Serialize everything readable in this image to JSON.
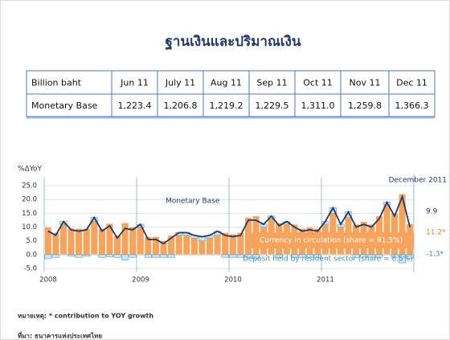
{
  "header": {
    "title": "ฐานเงินและปริมาณเงิน"
  },
  "table": {
    "rows": [
      [
        "Billion baht",
        "Jun 11",
        "July 11",
        "Aug 11",
        "Sep 11",
        "Oct 11",
        "Nov 11",
        "Dec 11"
      ],
      [
        "Monetary Base",
        "1,223.4",
        "1,206.8",
        "1,219.2",
        "1,229.5",
        "1,311.0",
        "1,259.8",
        "1,366.3"
      ]
    ]
  },
  "chart_data": {
    "type": "bar_line",
    "y_label": "%ΔYoY",
    "categories": [
      "2008",
      null,
      null,
      null,
      null,
      null,
      null,
      null,
      null,
      null,
      null,
      null,
      "2009",
      null,
      null,
      null,
      null,
      null,
      null,
      null,
      null,
      null,
      null,
      null,
      "2010",
      null,
      null,
      null,
      null,
      null,
      null,
      null,
      null,
      null,
      null,
      null,
      "2011",
      null,
      null,
      null,
      null,
      null,
      null,
      null,
      null,
      null,
      null,
      null
    ],
    "series": [
      {
        "name": "Currency in circulation (share = 91.5%)",
        "color": "#f7a35c",
        "values": [
          10,
          8,
          11,
          9.5,
          9.5,
          9.5,
          12,
          9.5,
          11.3,
          7,
          11.5,
          10,
          10,
          6.5,
          6.5,
          5,
          7,
          7,
          7,
          6,
          5,
          6,
          7,
          8,
          7.5,
          8,
          13.5,
          14,
          10,
          13,
          11.5,
          11,
          11,
          9.5,
          10,
          9.5,
          11,
          15,
          10,
          13.5,
          11,
          12,
          11,
          14,
          18,
          15,
          22,
          11.2
        ]
      },
      {
        "name": "Deposit held by resident sector (share = 8.5%)",
        "color": "#c6e6f4",
        "values": [
          -1.5,
          -1,
          1,
          -0.5,
          -1,
          -0.5,
          1.5,
          -1,
          -0.8,
          -1,
          -2,
          -1,
          1,
          -1,
          -1,
          -1,
          -1,
          1,
          1,
          1,
          1.5,
          1,
          1.5,
          -1,
          -1,
          -1,
          -1,
          -1.5,
          1,
          1,
          -1,
          1,
          -1,
          -1,
          -1,
          -1,
          1,
          2,
          1,
          2,
          -1,
          -1,
          -1,
          -1,
          1,
          -1,
          -3,
          -1.3
        ]
      },
      {
        "name": "Monetary Base",
        "color": "#1f3a6e",
        "values": [
          8.5,
          7,
          12,
          9,
          8.5,
          9,
          13.5,
          8.5,
          10.5,
          6,
          9.5,
          9,
          11,
          5.5,
          5.5,
          4,
          6,
          8,
          8,
          7,
          6.5,
          7,
          8.5,
          7,
          6.5,
          7,
          12.5,
          12.5,
          11,
          14,
          10.5,
          12,
          10,
          8.5,
          9,
          8.5,
          12,
          17,
          11,
          15.5,
          10,
          11,
          10,
          13,
          19,
          14,
          21,
          9.9
        ]
      }
    ],
    "ylim": [
      -5,
      25
    ],
    "yticks": [
      {
        "value": -5,
        "label": "-5.0"
      },
      {
        "value": 0,
        "label": "0.0"
      },
      {
        "value": 5,
        "label": "5.0"
      },
      {
        "value": 10,
        "label": "10.0"
      },
      {
        "value": 15,
        "label": "15.0"
      },
      {
        "value": 20,
        "label": "20.0"
      },
      {
        "value": 25,
        "label": "25.0"
      }
    ],
    "grid": true,
    "annotations": [
      "December 2011",
      "9.9",
      "11.2*",
      "-1.3*"
    ]
  },
  "notes": [
    "หมายเหตุ: * contribution to YOY growth",
    "ที่มา: ธนาคารแห่งประเทศไทย"
  ]
}
